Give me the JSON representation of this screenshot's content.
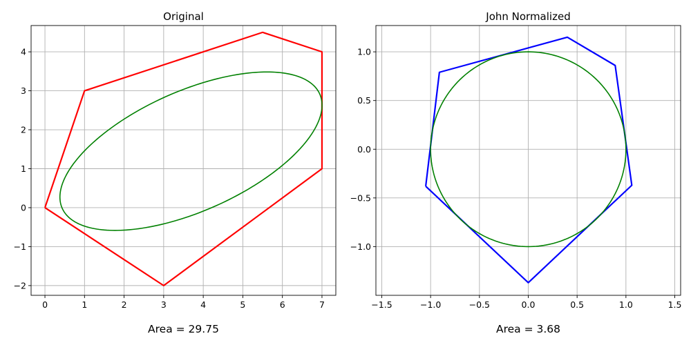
{
  "chart_data": [
    {
      "type": "line",
      "title": "Original",
      "xlabel": "",
      "ylabel": "",
      "xlim": [
        -0.35,
        7.35
      ],
      "ylim": [
        -2.25,
        4.675
      ],
      "xticks": [
        0,
        1,
        2,
        3,
        4,
        5,
        6,
        7
      ],
      "yticks": [
        -2,
        -1,
        0,
        1,
        2,
        3,
        4
      ],
      "xtick_labels": [
        "0",
        "1",
        "2",
        "3",
        "4",
        "5",
        "6",
        "7"
      ],
      "ytick_labels": [
        "−2",
        "−1",
        "0",
        "1",
        "2",
        "3",
        "4"
      ],
      "grid": true,
      "series": [
        {
          "kind": "polygon",
          "color": "#ff0000",
          "points": [
            [
              0,
              0
            ],
            [
              1,
              3
            ],
            [
              5.5,
              4.5
            ],
            [
              7,
              4
            ],
            [
              7,
              1
            ],
            [
              3,
              -2
            ],
            [
              0,
              0
            ]
          ]
        },
        {
          "kind": "ellipse",
          "color": "#008000",
          "center": [
            3.69,
            1.45
          ],
          "axes": [
            [
              3.25,
              1.475
            ],
            [
              -0.635,
              1.4
            ]
          ]
        }
      ],
      "annotation": "Area = 29.75"
    },
    {
      "type": "line",
      "title": "John Normalized",
      "xlabel": "",
      "ylabel": "",
      "xlim": [
        -1.56,
        1.56
      ],
      "ylim": [
        -1.5,
        1.27
      ],
      "xticks": [
        -1.5,
        -1.0,
        -0.5,
        0.0,
        0.5,
        1.0,
        1.5
      ],
      "yticks": [
        -1.0,
        -0.5,
        0.0,
        0.5,
        1.0
      ],
      "xtick_labels": [
        "−1.5",
        "−1.0",
        "−0.5",
        "0.0",
        "0.5",
        "1.0",
        "1.5"
      ],
      "ytick_labels": [
        "−1.0",
        "−0.5",
        "0.0",
        "0.5",
        "1.0"
      ],
      "grid": true,
      "series": [
        {
          "kind": "polygon",
          "color": "#0000ff",
          "points": [
            [
              -1.05,
              -0.38
            ],
            [
              -0.91,
              0.79
            ],
            [
              0.4,
              1.15
            ],
            [
              0.89,
              0.86
            ],
            [
              1.06,
              -0.37
            ],
            [
              0,
              -1.37
            ],
            [
              -1.05,
              -0.38
            ]
          ]
        },
        {
          "kind": "ellipse",
          "color": "#008000",
          "center": [
            0,
            0
          ],
          "axes": [
            [
              1,
              0
            ],
            [
              0,
              1
            ]
          ]
        }
      ],
      "annotation": "Area = 3.68"
    }
  ]
}
